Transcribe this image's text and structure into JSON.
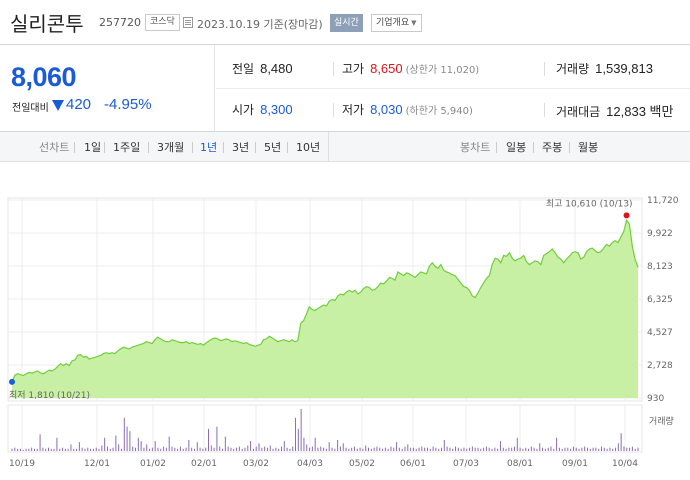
{
  "header": {
    "stock_name": "실리콘투",
    "stock_code": "257720",
    "market": "코스닥",
    "base_date": "2023.10.19 기준(장마감)",
    "realtime_label": "실시간",
    "company_info_label": "기업개요",
    "company_info_icon": "caret-down-icon"
  },
  "price": {
    "now": "8,060",
    "prev_label": "전일대비",
    "direction_icon": "down-triangle-icon",
    "change_amount": "420",
    "change_percent": "-4.95%",
    "down_color": "#1a5bd8",
    "up_color": "#e0121a"
  },
  "stats": {
    "prev_close": {
      "label": "전일",
      "value": "8,480"
    },
    "high": {
      "label": "고가",
      "value": "8,650",
      "sub": "(상한가 11,020)"
    },
    "volume": {
      "label": "거래량",
      "value": "1,539,813"
    },
    "open": {
      "label": "시가",
      "value": "8,300"
    },
    "low": {
      "label": "저가",
      "value": "8,030",
      "sub": "(하한가 5,940)"
    },
    "trade_value": {
      "label": "거래대금",
      "value": "12,833 백만"
    }
  },
  "period_bar": {
    "line_chart_label": "선차트",
    "periods": [
      "1일",
      "1주일",
      "3개월",
      "1년",
      "3년",
      "5년",
      "10년"
    ],
    "selected_period": "1년",
    "candle_chart_label": "봉차트",
    "candle_periods": [
      "일봉",
      "주봉",
      "월봉"
    ]
  },
  "chart_data": {
    "type": "area",
    "title": "",
    "xlabel": "",
    "ylabel": "",
    "x_tick_labels": [
      "10/19",
      "12/01",
      "01/02",
      "02/01",
      "03/02",
      "04/03",
      "05/02",
      "06/01",
      "07/03",
      "08/01",
      "09/01",
      "10/04"
    ],
    "y_tick_labels": [
      "11,720",
      "9,922",
      "8,123",
      "6,325",
      "4,527",
      "2,728",
      "930"
    ],
    "ylim": [
      930,
      11720
    ],
    "grid": true,
    "line_color": "#6fcf3a",
    "fill_color": "#c8f0a4",
    "annotations": {
      "high": {
        "label": "최고 10,610 (10/13)",
        "value": 10610,
        "date": "10/13",
        "color": "#e0121a"
      },
      "low": {
        "label": "최저 1,810 (10/21)",
        "value": 1810,
        "date": "10/21",
        "color": "#1a5bd8"
      }
    },
    "volume_label": "거래량",
    "volume_color": "#8a6bb8",
    "series": [
      {
        "values": [
          1810,
          2180,
          2250,
          2200,
          2150,
          2250,
          2330,
          2280,
          2350,
          2400,
          2300,
          2250,
          2350,
          2450,
          2400,
          2500,
          2650,
          2800,
          2700,
          2800,
          2700,
          2950,
          3000,
          3250,
          3300,
          3150,
          3200,
          3050,
          3100,
          3150,
          3200,
          3250,
          3350,
          3400,
          3350,
          3400,
          3350,
          3500,
          3600,
          3700,
          3650,
          3600,
          3700,
          3750,
          3800,
          3850,
          3900,
          4000,
          3950,
          3900,
          4100,
          4250,
          4150,
          4050,
          4000,
          4000,
          4100,
          4050,
          4000,
          3950,
          3950,
          4000,
          3900,
          3950,
          3900,
          3850,
          3900,
          3800,
          3950,
          4050,
          4150,
          4200,
          4150,
          4050,
          4100,
          4150,
          4100,
          4000,
          4050,
          4000,
          3950,
          3900,
          3950,
          3850,
          3800,
          3750,
          3800,
          3850,
          4100,
          4150,
          4300,
          4200,
          4100,
          4000,
          4050,
          4100,
          4050,
          4000,
          4100,
          4000,
          4050,
          5000,
          5150,
          5500,
          5900,
          5750,
          5700,
          5800,
          5900,
          6000,
          5950,
          6200,
          6300,
          6250,
          6500,
          6600,
          6550,
          6700,
          6800,
          6700,
          6800,
          6600,
          6700,
          6900,
          7000,
          6950,
          6800,
          6850,
          7000,
          7200,
          7150,
          7300,
          7500,
          7450,
          7350,
          7800,
          7700,
          7600,
          7750,
          7700,
          7600,
          7500,
          7650,
          7800,
          7750,
          7700,
          8100,
          8300,
          8100,
          8000,
          8200,
          7900,
          7800,
          7750,
          7650,
          7600,
          7400,
          7200,
          7000,
          6950,
          6800,
          6500,
          6400,
          6650,
          6950,
          7200,
          7450,
          7600,
          8200,
          8550,
          8500,
          8300,
          8700,
          8650,
          8850,
          8550,
          8400,
          8500,
          8550,
          8700,
          8350,
          8200,
          8300,
          8400,
          8350,
          8200,
          8700,
          8800,
          8900,
          9050,
          8850,
          8600,
          8500,
          8300,
          8500,
          8650,
          8850,
          8900,
          8850,
          8500,
          8600,
          8900,
          9050,
          9100,
          8950,
          8850,
          8900,
          9100,
          9300,
          9200,
          9400,
          9500,
          9400,
          9700,
          10000,
          10610,
          10400,
          9200,
          8480,
          8060
        ]
      }
    ],
    "volume_values": [
      2,
      3,
      2,
      2,
      1,
      2,
      2,
      3,
      2,
      2,
      15,
      3,
      2,
      3,
      2,
      2,
      12,
      2,
      3,
      2,
      2,
      6,
      2,
      2,
      8,
      3,
      2,
      3,
      2,
      2,
      3,
      2,
      5,
      12,
      4,
      2,
      3,
      14,
      6,
      2,
      30,
      22,
      18,
      4,
      3,
      12,
      9,
      3,
      6,
      2,
      3,
      9,
      3,
      2,
      4,
      3,
      13,
      4,
      3,
      2,
      4,
      2,
      3,
      10,
      3,
      2,
      8,
      3,
      2,
      3,
      20,
      5,
      3,
      22,
      4,
      2,
      13,
      4,
      3,
      2,
      3,
      4,
      2,
      3,
      5,
      9,
      2,
      4,
      7,
      3,
      4,
      3,
      5,
      2,
      3,
      2,
      4,
      9,
      3,
      2,
      4,
      30,
      20,
      38,
      12,
      6,
      3,
      4,
      12,
      3,
      4,
      3,
      2,
      8,
      3,
      2,
      10,
      4,
      7,
      3,
      2,
      3,
      4,
      2,
      3,
      2,
      5,
      3,
      2,
      3,
      4,
      3,
      2,
      3,
      2,
      4,
      3,
      8,
      3,
      2,
      4,
      6,
      3,
      3,
      2,
      3,
      4,
      3,
      3,
      2,
      4,
      3,
      2,
      3,
      10,
      4,
      3,
      2,
      4,
      3,
      2,
      3,
      2,
      3,
      4,
      3,
      3,
      2,
      3,
      4,
      3,
      2,
      3,
      2,
      9,
      3,
      2,
      3,
      3,
      4,
      12,
      3,
      2,
      3,
      2,
      4,
      3,
      2,
      7,
      3,
      2,
      3,
      4,
      2,
      12,
      3,
      2,
      3,
      3,
      2,
      4,
      3,
      2,
      3,
      4,
      3,
      2,
      3,
      3,
      2,
      4,
      3,
      2,
      3,
      2,
      3,
      7,
      16,
      4,
      3,
      3,
      4,
      2,
      3
    ]
  }
}
